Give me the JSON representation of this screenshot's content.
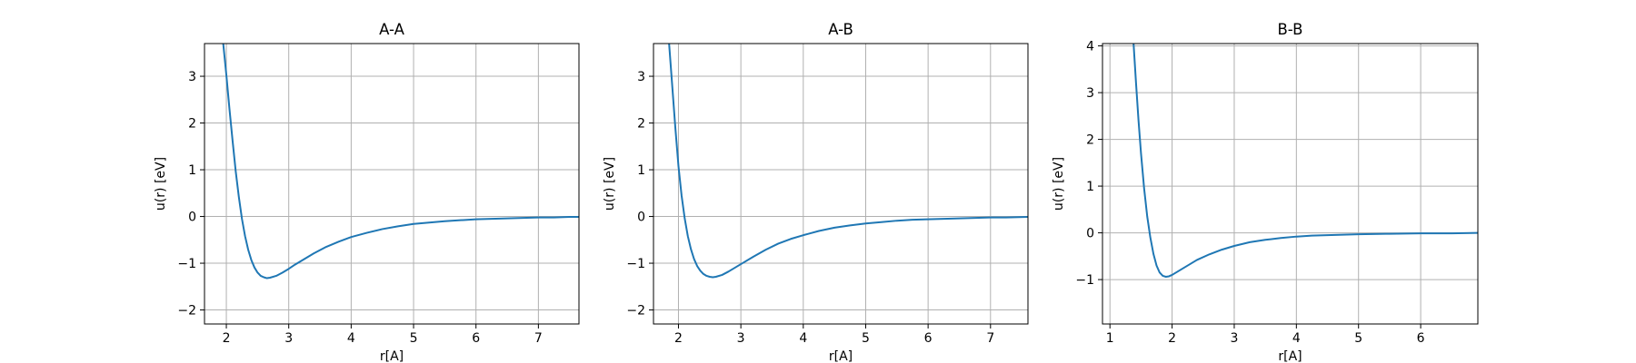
{
  "chart_data": [
    {
      "type": "line",
      "title": "A-A",
      "xlabel": "r[A]",
      "ylabel": "u(r) [eV]",
      "xlim": [
        1.65,
        7.65
      ],
      "ylim": [
        -2.3,
        3.7
      ],
      "xticks": [
        2,
        3,
        4,
        5,
        6,
        7
      ],
      "yticks": [
        -2,
        -1,
        0,
        1,
        2,
        3
      ],
      "grid": true,
      "series": [
        {
          "color": "#1f77b4",
          "x": [
            1.95,
            2.0,
            2.05,
            2.1,
            2.15,
            2.2,
            2.25,
            2.3,
            2.35,
            2.4,
            2.45,
            2.5,
            2.55,
            2.6,
            2.65,
            2.7,
            2.8,
            2.9,
            3.0,
            3.1,
            3.2,
            3.4,
            3.6,
            3.8,
            4.0,
            4.25,
            4.5,
            4.75,
            5.0,
            5.25,
            5.5,
            5.75,
            6.0,
            6.25,
            6.5,
            6.75,
            7.0,
            7.25,
            7.5,
            7.65
          ],
          "y": [
            3.7,
            3.03,
            2.3,
            1.62,
            0.97,
            0.42,
            -0.05,
            -0.42,
            -0.71,
            -0.93,
            -1.09,
            -1.2,
            -1.27,
            -1.3,
            -1.32,
            -1.31,
            -1.27,
            -1.2,
            -1.12,
            -1.03,
            -0.95,
            -0.79,
            -0.65,
            -0.54,
            -0.44,
            -0.35,
            -0.27,
            -0.21,
            -0.16,
            -0.13,
            -0.1,
            -0.08,
            -0.06,
            -0.05,
            -0.04,
            -0.03,
            -0.02,
            -0.02,
            -0.01,
            -0.01
          ]
        }
      ]
    },
    {
      "type": "line",
      "title": "A-B",
      "xlabel": "r[A]",
      "ylabel": "u(r) [eV]",
      "xlim": [
        1.6,
        7.6
      ],
      "ylim": [
        -2.3,
        3.7
      ],
      "xticks": [
        2,
        3,
        4,
        5,
        6,
        7
      ],
      "yticks": [
        -2,
        -1,
        0,
        1,
        2,
        3
      ],
      "grid": true,
      "series": [
        {
          "color": "#1f77b4",
          "x": [
            1.85,
            1.9,
            1.95,
            2.0,
            2.05,
            2.1,
            2.15,
            2.2,
            2.25,
            2.3,
            2.35,
            2.4,
            2.45,
            2.5,
            2.55,
            2.6,
            2.7,
            2.8,
            2.9,
            3.0,
            3.2,
            3.4,
            3.6,
            3.8,
            4.0,
            4.25,
            4.5,
            4.75,
            5.0,
            5.25,
            5.5,
            5.75,
            6.0,
            6.25,
            6.5,
            6.75,
            7.0,
            7.25,
            7.6
          ],
          "y": [
            3.7,
            2.8,
            1.9,
            1.08,
            0.45,
            -0.04,
            -0.42,
            -0.7,
            -0.91,
            -1.06,
            -1.16,
            -1.23,
            -1.27,
            -1.29,
            -1.3,
            -1.29,
            -1.25,
            -1.18,
            -1.1,
            -1.02,
            -0.86,
            -0.71,
            -0.58,
            -0.48,
            -0.4,
            -0.31,
            -0.24,
            -0.19,
            -0.15,
            -0.12,
            -0.09,
            -0.07,
            -0.06,
            -0.05,
            -0.04,
            -0.03,
            -0.02,
            -0.02,
            -0.01
          ]
        }
      ]
    },
    {
      "type": "line",
      "title": "B-B",
      "xlabel": "r[A]",
      "ylabel": "u(r) [eV]",
      "xlim": [
        0.88,
        6.92
      ],
      "ylim": [
        -1.95,
        4.05
      ],
      "xticks": [
        1,
        2,
        3,
        4,
        5,
        6
      ],
      "yticks": [
        -1,
        0,
        1,
        2,
        3,
        4
      ],
      "grid": true,
      "series": [
        {
          "color": "#1f77b4",
          "x": [
            1.38,
            1.42,
            1.46,
            1.5,
            1.55,
            1.6,
            1.65,
            1.7,
            1.75,
            1.8,
            1.85,
            1.9,
            1.95,
            2.0,
            2.1,
            2.2,
            2.3,
            2.4,
            2.6,
            2.8,
            3.0,
            3.25,
            3.5,
            3.75,
            4.0,
            4.25,
            4.5,
            5.0,
            5.5,
            6.0,
            6.5,
            6.92
          ],
          "y": [
            4.05,
            3.2,
            2.4,
            1.7,
            0.95,
            0.35,
            -0.1,
            -0.45,
            -0.7,
            -0.85,
            -0.92,
            -0.94,
            -0.93,
            -0.9,
            -0.82,
            -0.74,
            -0.66,
            -0.58,
            -0.46,
            -0.36,
            -0.28,
            -0.2,
            -0.15,
            -0.11,
            -0.08,
            -0.06,
            -0.05,
            -0.03,
            -0.02,
            -0.01,
            -0.01,
            0.0
          ]
        }
      ]
    }
  ]
}
